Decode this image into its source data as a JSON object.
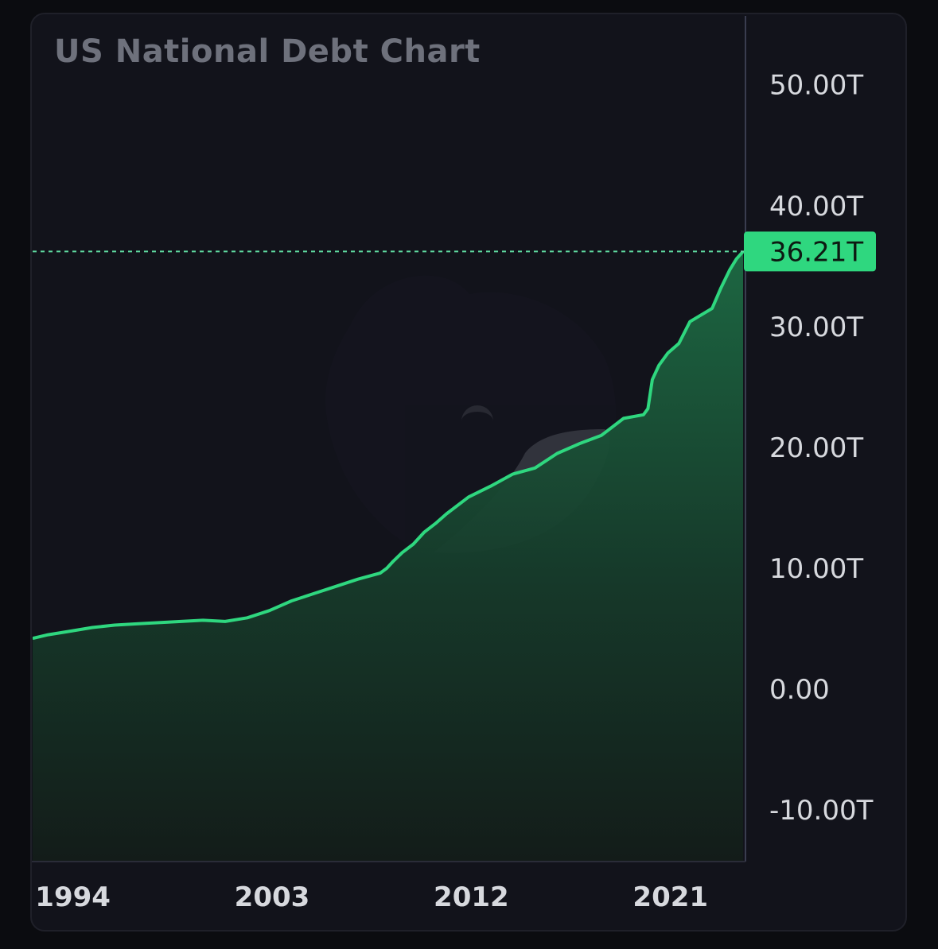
{
  "chart_data": {
    "type": "area",
    "title": "US National Debt Chart",
    "xlabel": "",
    "ylabel": "",
    "x_ticks": [
      {
        "label": "1994",
        "year": 1994
      },
      {
        "label": "2003",
        "year": 2003
      },
      {
        "label": "2012",
        "year": 2012
      },
      {
        "label": "2021",
        "year": 2021
      }
    ],
    "y_ticks": [
      {
        "label": "50.00T",
        "value": 50
      },
      {
        "label": "40.00T",
        "value": 40
      },
      {
        "label": "30.00T",
        "value": 30
      },
      {
        "label": "20.00T",
        "value": 20
      },
      {
        "label": "10.00T",
        "value": 10
      },
      {
        "label": "0.00",
        "value": 0
      },
      {
        "label": "-10.00T",
        "value": -10
      }
    ],
    "xlim": [
      1992.3,
      2024.4
    ],
    "ylim": [
      -14.2,
      55.7
    ],
    "y_unit": "trillion USD",
    "series": [
      {
        "x": [
          1992.3,
          1993.0,
          1994.0,
          1995.0,
          1996.0,
          1997.0,
          1998.0,
          1999.0,
          2000.0,
          2001.0,
          2002.0,
          2003.0,
          2004.0,
          2005.0,
          2006.0,
          2007.0,
          2008.0,
          2008.3,
          2008.6,
          2009.0,
          2009.5,
          2010.0,
          2010.5,
          2011.0,
          2012.0,
          2013.0,
          2014.0,
          2015.0,
          2016.0,
          2017.0,
          2018.0,
          2019.0,
          2019.9,
          2020.1,
          2020.3,
          2020.6,
          2021.0,
          2021.5,
          2022.0,
          2023.0,
          2023.4,
          2023.8,
          2024.1,
          2024.4
        ],
        "y": [
          4.2,
          4.5,
          4.8,
          5.1,
          5.3,
          5.4,
          5.5,
          5.6,
          5.7,
          5.6,
          5.9,
          6.5,
          7.3,
          7.9,
          8.5,
          9.1,
          9.6,
          10.0,
          10.6,
          11.3,
          12.0,
          13.0,
          13.7,
          14.5,
          15.9,
          16.8,
          17.8,
          18.3,
          19.5,
          20.3,
          21.0,
          22.4,
          22.7,
          23.2,
          25.6,
          26.8,
          27.8,
          28.6,
          30.4,
          31.5,
          33.2,
          34.7,
          35.6,
          36.21
        ]
      }
    ],
    "last_value_label": "36.21T",
    "last_value": 36.21,
    "grid": false,
    "legend": "none",
    "colors": {
      "line": "#2fd77f",
      "fill_top": "#1c5a3b",
      "fill_bottom": "#121f1a",
      "label_bg": "#2fd77f",
      "background": "#12131b"
    }
  }
}
